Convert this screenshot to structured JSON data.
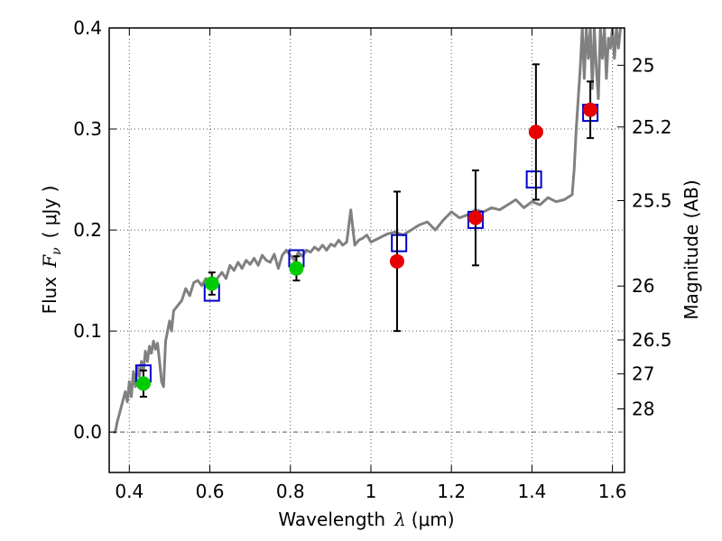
{
  "chart_data": {
    "type": "scatter",
    "xlabel": "Wavelength  λ (μm)",
    "ylabel": "Flux  F_ν  ( μJy )",
    "ylabel_parts": {
      "word": "Flux",
      "symbol": "F",
      "subscript": "ν",
      "unit": "( μJy )"
    },
    "xlabel_parts": {
      "word": "Wavelength",
      "symbol": "λ",
      "unit": "(μm)"
    },
    "right_ylabel": "Magnitude (AB)",
    "xlim": [
      0.35,
      1.63
    ],
    "ylim": [
      -0.04,
      0.4
    ],
    "grid": true,
    "x_ticks": [
      {
        "value": 0.4,
        "label": "0.4"
      },
      {
        "value": 0.6,
        "label": "0.6"
      },
      {
        "value": 0.8,
        "label": "0.8"
      },
      {
        "value": 1.0,
        "label": "1"
      },
      {
        "value": 1.2,
        "label": "1.2"
      },
      {
        "value": 1.4,
        "label": "1.4"
      },
      {
        "value": 1.6,
        "label": "1.6"
      }
    ],
    "y_ticks": [
      {
        "value": 0.0,
        "label": "0.0"
      },
      {
        "value": 0.1,
        "label": "0.1"
      },
      {
        "value": 0.2,
        "label": "0.2"
      },
      {
        "value": 0.3,
        "label": "0.3"
      },
      {
        "value": 0.4,
        "label": "0.4"
      }
    ],
    "magnitude_ticks": [
      "25",
      "25.2",
      "25.5",
      "26",
      "26.5",
      "27",
      "28"
    ],
    "series": [
      {
        "kind": "line",
        "color": "#808080",
        "x": [
          0.36,
          0.365,
          0.37,
          0.38,
          0.39,
          0.395,
          0.4,
          0.405,
          0.41,
          0.415,
          0.42,
          0.425,
          0.43,
          0.435,
          0.44,
          0.445,
          0.45,
          0.455,
          0.46,
          0.465,
          0.47,
          0.475,
          0.48,
          0.485,
          0.49,
          0.495,
          0.5,
          0.505,
          0.51,
          0.52,
          0.53,
          0.54,
          0.55,
          0.56,
          0.57,
          0.58,
          0.59,
          0.6,
          0.61,
          0.62,
          0.63,
          0.64,
          0.65,
          0.66,
          0.67,
          0.68,
          0.69,
          0.7,
          0.71,
          0.72,
          0.73,
          0.74,
          0.75,
          0.76,
          0.77,
          0.78,
          0.79,
          0.8,
          0.81,
          0.82,
          0.83,
          0.84,
          0.85,
          0.86,
          0.87,
          0.88,
          0.89,
          0.9,
          0.91,
          0.92,
          0.93,
          0.94,
          0.95,
          0.96,
          0.97,
          0.98,
          0.99,
          1.0,
          1.02,
          1.04,
          1.06,
          1.08,
          1.1,
          1.12,
          1.14,
          1.16,
          1.18,
          1.2,
          1.22,
          1.24,
          1.26,
          1.28,
          1.3,
          1.32,
          1.34,
          1.36,
          1.38,
          1.4,
          1.42,
          1.44,
          1.46,
          1.48,
          1.5,
          1.505,
          1.51,
          1.515,
          1.52,
          1.525,
          1.53,
          1.535,
          1.54,
          1.545,
          1.55,
          1.555,
          1.56,
          1.565,
          1.57,
          1.575,
          1.58,
          1.585,
          1.59,
          1.595,
          1.6,
          1.605,
          1.61,
          1.615,
          1.62
        ],
        "y": [
          0.0,
          0.0,
          0.01,
          0.025,
          0.04,
          0.03,
          0.05,
          0.035,
          0.06,
          0.045,
          0.065,
          0.055,
          0.07,
          0.06,
          0.08,
          0.07,
          0.085,
          0.078,
          0.09,
          0.082,
          0.088,
          0.07,
          0.05,
          0.045,
          0.09,
          0.1,
          0.11,
          0.1,
          0.12,
          0.125,
          0.13,
          0.142,
          0.135,
          0.148,
          0.15,
          0.145,
          0.152,
          0.15,
          0.145,
          0.153,
          0.158,
          0.152,
          0.165,
          0.16,
          0.168,
          0.162,
          0.17,
          0.166,
          0.172,
          0.165,
          0.175,
          0.17,
          0.168,
          0.176,
          0.162,
          0.175,
          0.18,
          0.175,
          0.17,
          0.178,
          0.174,
          0.18,
          0.178,
          0.183,
          0.18,
          0.185,
          0.18,
          0.186,
          0.184,
          0.19,
          0.185,
          0.188,
          0.22,
          0.185,
          0.19,
          0.192,
          0.195,
          0.188,
          0.192,
          0.196,
          0.198,
          0.195,
          0.2,
          0.205,
          0.208,
          0.2,
          0.21,
          0.218,
          0.212,
          0.215,
          0.22,
          0.218,
          0.222,
          0.22,
          0.225,
          0.23,
          0.222,
          0.228,
          0.225,
          0.232,
          0.228,
          0.23,
          0.235,
          0.26,
          0.3,
          0.33,
          0.36,
          0.4,
          0.35,
          0.4,
          0.37,
          0.4,
          0.34,
          0.4,
          0.36,
          0.33,
          0.4,
          0.37,
          0.4,
          0.35,
          0.39,
          0.38,
          0.4,
          0.37,
          0.4,
          0.38,
          0.4
        ]
      },
      {
        "kind": "open-square",
        "color": "#0000cc",
        "x": [
          0.435,
          0.605,
          0.815,
          1.07,
          1.26,
          1.405,
          1.545
        ],
        "y": [
          0.058,
          0.138,
          0.172,
          0.187,
          0.21,
          0.25,
          0.316
        ]
      },
      {
        "kind": "filled-circle",
        "color": "#00cc00",
        "x": [
          0.435,
          0.605,
          0.815
        ],
        "y": [
          0.048,
          0.147,
          0.162
        ],
        "err": [
          0.013,
          0.011,
          0.012
        ]
      },
      {
        "kind": "filled-circle",
        "color": "#e60000",
        "x": [
          1.065,
          1.26,
          1.41,
          1.545
        ],
        "y": [
          0.169,
          0.212,
          0.297,
          0.319
        ],
        "err": [
          0.069,
          0.047,
          0.067,
          0.028
        ]
      }
    ]
  }
}
